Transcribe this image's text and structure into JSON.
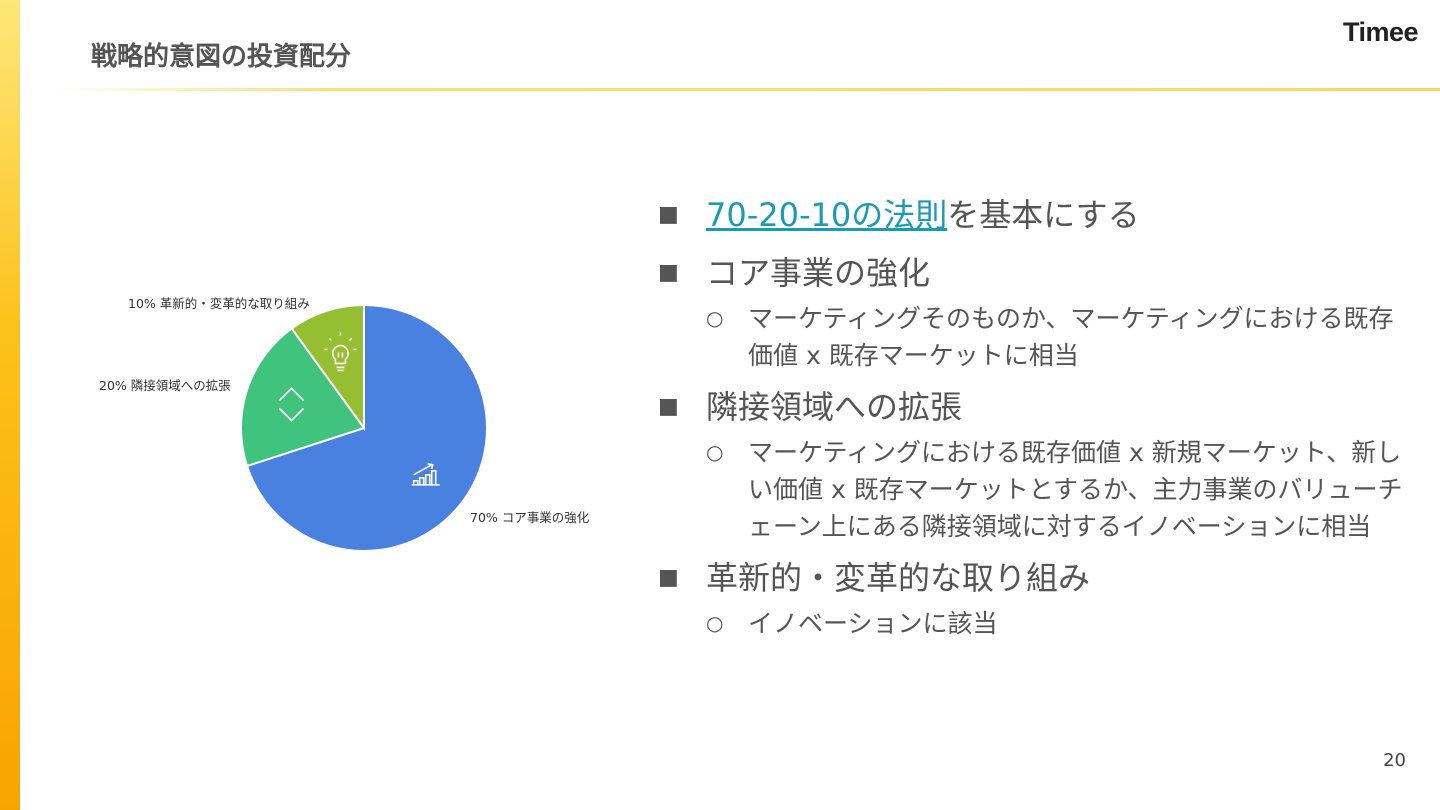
{
  "header": {
    "title": "戦略的意図の投資配分",
    "logo": "Timee"
  },
  "chart_data": {
    "type": "pie",
    "start": "top",
    "direction": "clockwise",
    "slices": [
      {
        "label": "70% コア事業の強化",
        "value": 70,
        "color": "#4a80e0",
        "icon": "growth-chart-icon"
      },
      {
        "label": "20% 隣接領域への拡張",
        "value": 20,
        "color": "#3fc37d",
        "icon": "diamond-arrows-icon"
      },
      {
        "label": "10% 革新的・変革的な取り組み",
        "value": 10,
        "color": "#96be32",
        "icon": "lightbulb-icon"
      }
    ]
  },
  "bullets": [
    {
      "link": "70-20-10の法則",
      "text": "を基本にする",
      "subs": []
    },
    {
      "text": "コア事業の強化",
      "subs": [
        "マーケティングそのものか、マーケティングにおける既存価値 x 既存マーケットに相当"
      ]
    },
    {
      "text": "隣接領域への拡張",
      "subs": [
        "マーケティングにおける既存価値 x 新規マーケット、新しい価値 x 既存マーケットとするか、主力事業のバリューチェーン上にある隣接領域に対するイノベーションに相当"
      ]
    },
    {
      "text": "革新的・変革的な取り組み",
      "subs": [
        "イノベーションに該当"
      ]
    }
  ],
  "markers": {
    "level1": "■",
    "level2": "○"
  },
  "page_number": "20"
}
